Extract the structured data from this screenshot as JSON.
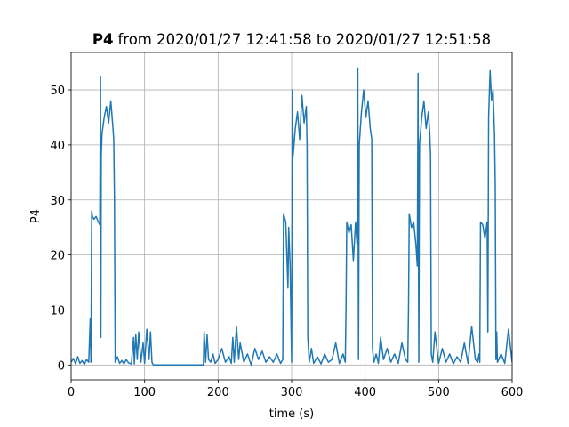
{
  "chart_data": {
    "type": "line",
    "title": {
      "bold": "P4",
      "rest": "from 2020/01/27 12:41:58 to 2020/01/27 12:51:58"
    },
    "xlabel": "time (s)",
    "ylabel": "P4",
    "color": "#1f77b4",
    "grid": true,
    "xlim": [
      0,
      600
    ],
    "xticks": [
      0,
      100,
      200,
      300,
      400,
      500,
      600
    ],
    "ylim": [
      -2.7,
      56.8
    ],
    "yticks": [
      0,
      10,
      20,
      30,
      40,
      50
    ],
    "x": [
      0,
      3,
      6,
      9,
      12,
      15,
      18,
      21,
      24,
      26,
      27,
      28,
      29,
      31,
      34,
      37,
      39,
      40,
      40.5,
      41,
      42,
      45,
      48,
      51,
      54,
      57,
      58,
      59,
      60,
      63,
      66,
      69,
      72,
      75,
      78,
      82,
      85,
      86,
      88,
      90,
      92,
      95,
      98,
      100,
      103,
      106,
      108,
      110,
      112,
      180,
      181,
      183,
      185,
      187,
      190,
      193,
      196,
      200,
      205,
      210,
      215,
      218,
      220,
      222,
      225,
      228,
      230,
      235,
      240,
      245,
      250,
      255,
      260,
      265,
      270,
      275,
      280,
      285,
      288,
      289,
      292,
      295,
      296,
      298,
      300,
      301,
      302,
      305,
      308,
      311,
      314,
      317,
      320,
      321,
      322,
      324,
      327,
      330,
      335,
      340,
      345,
      350,
      355,
      360,
      365,
      370,
      373,
      374,
      375,
      378,
      381,
      384,
      387,
      389,
      390,
      391,
      392,
      395,
      398,
      401,
      404,
      407,
      409,
      410,
      412,
      415,
      418,
      421,
      425,
      430,
      435,
      440,
      445,
      450,
      455,
      458,
      459,
      460,
      463,
      466,
      469,
      471,
      472,
      473,
      474,
      477,
      480,
      483,
      486,
      488,
      489,
      490,
      492,
      495,
      500,
      505,
      510,
      515,
      520,
      525,
      530,
      535,
      540,
      545,
      550,
      553,
      555,
      556,
      557,
      560,
      563,
      566,
      567,
      568,
      570,
      572,
      574,
      576,
      577,
      578,
      579,
      580,
      585,
      590,
      595,
      600
    ],
    "values": [
      0.5,
      1.2,
      0.2,
      1.5,
      0.3,
      0.8,
      0.1,
      1.0,
      0.5,
      8.5,
      0.5,
      28,
      27,
      26.5,
      27,
      26,
      25.5,
      52.5,
      5,
      38,
      42,
      45,
      47,
      44,
      48,
      43,
      41,
      30,
      0.5,
      1.5,
      0.3,
      0.8,
      0.2,
      1.0,
      0.4,
      0.2,
      5,
      0.2,
      5.5,
      1,
      6,
      0.5,
      4,
      0.3,
      6.5,
      1,
      6,
      0.5,
      0,
      0,
      6,
      0.5,
      5.5,
      1,
      0.5,
      2,
      0.3,
      1,
      3,
      0.5,
      1.5,
      0.3,
      5,
      0.5,
      7,
      1,
      4,
      0.5,
      2,
      0,
      3,
      1,
      2.5,
      0.5,
      1.5,
      0.5,
      2,
      0.3,
      1,
      27.5,
      26,
      14,
      25,
      18,
      0.5,
      50,
      38,
      43,
      46,
      41,
      49,
      44,
      47,
      40,
      5,
      0.5,
      3,
      0.3,
      1.5,
      0.2,
      2,
      0.5,
      1,
      4,
      0.3,
      2,
      0.5,
      10,
      26,
      24,
      25.5,
      19,
      26,
      22,
      54,
      1,
      40,
      46,
      50,
      45,
      48,
      43,
      41,
      3,
      0.5,
      2,
      0.3,
      5,
      1,
      3,
      0.5,
      2,
      0.3,
      4,
      1,
      0.5,
      10,
      27.5,
      25,
      26,
      22,
      18,
      53,
      0.5,
      40,
      45,
      48,
      43,
      46,
      42,
      38,
      2,
      0.5,
      6,
      0.3,
      3,
      0.5,
      2,
      0.2,
      1.5,
      0.5,
      4,
      0.3,
      7,
      1,
      0.5,
      2,
      0.5,
      26,
      25.5,
      23,
      26,
      6,
      45,
      53.5,
      48,
      50,
      42,
      33,
      1,
      6,
      0.5,
      2,
      0.3,
      6.5,
      0.5
    ]
  }
}
